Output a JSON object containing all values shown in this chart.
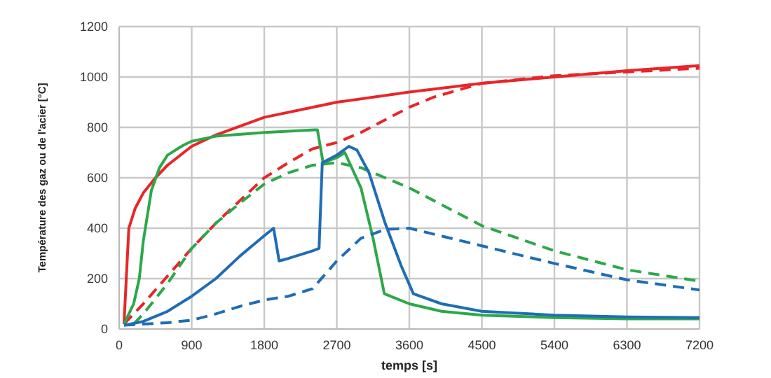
{
  "chart_data": {
    "type": "line",
    "xlabel": "temps [s]",
    "ylabel": "Température des  gaz ou de l'acier [°C]",
    "xlim": [
      0,
      7200
    ],
    "xticks": [
      0,
      900,
      1800,
      2700,
      3600,
      4500,
      5400,
      6300,
      7200
    ],
    "ylim": [
      0,
      1200
    ],
    "yticks": [
      0,
      200,
      400,
      600,
      800,
      1000,
      1200
    ],
    "grid": true,
    "legend": false,
    "marker": "none",
    "series": [
      {
        "color": "#e8262a",
        "line_style": "solid",
        "x": [
          60,
          120,
          200,
          300,
          450,
          600,
          900,
          1200,
          1800,
          2400,
          2700,
          3600,
          4500,
          5400,
          6300,
          7200
        ],
        "values": [
          20,
          400,
          480,
          540,
          600,
          650,
          725,
          770,
          840,
          880,
          900,
          940,
          975,
          1000,
          1025,
          1045
        ]
      },
      {
        "color": "#e8262a",
        "line_style": "dashed",
        "x": [
          60,
          300,
          600,
          900,
          1200,
          1500,
          1800,
          2100,
          2400,
          2700,
          3000,
          3300,
          3600,
          3900,
          4500,
          5400,
          6300,
          7200
        ],
        "values": [
          20,
          100,
          210,
          320,
          420,
          510,
          600,
          660,
          715,
          740,
          780,
          830,
          880,
          920,
          975,
          1005,
          1020,
          1035
        ]
      },
      {
        "color": "#2ca84a",
        "line_style": "solid",
        "x": [
          60,
          180,
          250,
          300,
          400,
          500,
          600,
          800,
          900,
          1200,
          1800,
          2430,
          2460,
          2530,
          2700,
          2800,
          3000,
          3150,
          3290,
          3600,
          4000,
          4500,
          5400,
          6300,
          7200
        ],
        "values": [
          20,
          100,
          200,
          350,
          550,
          640,
          690,
          730,
          745,
          765,
          780,
          790,
          790,
          660,
          680,
          700,
          560,
          360,
          140,
          100,
          70,
          55,
          45,
          40,
          40
        ]
      },
      {
        "color": "#2ca84a",
        "line_style": "dashed",
        "x": [
          180,
          300,
          600,
          900,
          1200,
          1500,
          1800,
          2100,
          2400,
          2700,
          3000,
          3300,
          3600,
          4500,
          5400,
          6300,
          7200
        ],
        "values": [
          20,
          60,
          180,
          320,
          420,
          500,
          575,
          620,
          650,
          660,
          640,
          600,
          560,
          410,
          310,
          235,
          190
        ]
      },
      {
        "color": "#1f6db5",
        "line_style": "solid",
        "x": [
          60,
          300,
          600,
          900,
          1200,
          1500,
          1800,
          1916,
          1985,
          2100,
          2400,
          2480,
          2520,
          2700,
          2850,
          2950,
          3100,
          3300,
          3500,
          3650,
          4000,
          4500,
          5400,
          6300,
          7200
        ],
        "values": [
          15,
          30,
          70,
          130,
          200,
          290,
          370,
          400,
          270,
          280,
          310,
          320,
          660,
          690,
          725,
          710,
          620,
          420,
          250,
          140,
          100,
          70,
          55,
          48,
          45
        ]
      },
      {
        "color": "#1f6db5",
        "line_style": "dashed",
        "x": [
          60,
          600,
          900,
          1200,
          1500,
          1800,
          2100,
          2400,
          2700,
          3000,
          3300,
          3600,
          4500,
          5400,
          6300,
          7200
        ],
        "values": [
          15,
          25,
          35,
          60,
          90,
          115,
          130,
          160,
          270,
          360,
          395,
          400,
          330,
          260,
          195,
          155
        ]
      }
    ]
  }
}
